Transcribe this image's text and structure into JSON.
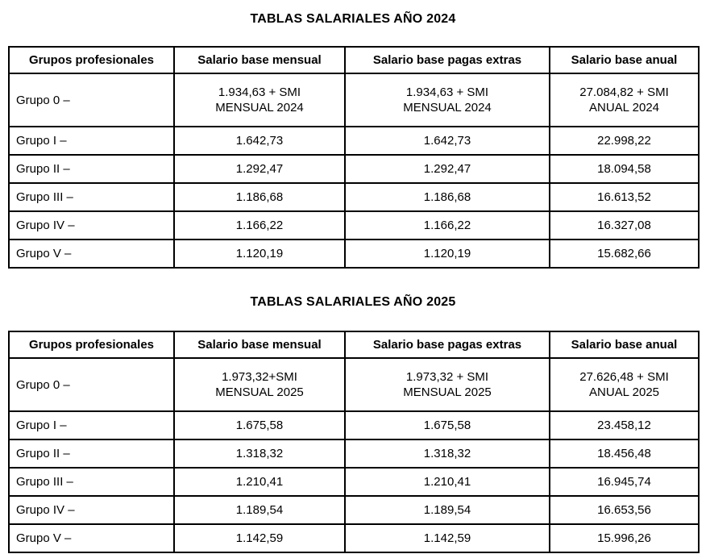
{
  "page": {
    "background": "#ffffff",
    "text_color": "#000000",
    "border_color": "#000000"
  },
  "tables": [
    {
      "title": "TABLAS SALARIALES AÑO 2024",
      "headers": [
        "Grupos profesionales",
        "Salario base mensual",
        "Salario base pagas extras",
        "Salario base anual"
      ],
      "rows": [
        [
          "Grupo 0 –",
          "1.934,63 + SMI\nMENSUAL 2024",
          "1.934,63 + SMI\nMENSUAL 2024",
          "27.084,82 + SMI\nANUAL 2024"
        ],
        [
          "Grupo I –",
          "1.642,73",
          "1.642,73",
          "22.998,22"
        ],
        [
          "Grupo II –",
          "1.292,47",
          "1.292,47",
          "18.094,58"
        ],
        [
          "Grupo III –",
          "1.186,68",
          "1.186,68",
          "16.613,52"
        ],
        [
          "Grupo IV –",
          "1.166,22",
          "1.166,22",
          "16.327,08"
        ],
        [
          "Grupo V –",
          "1.120,19",
          "1.120,19",
          "15.682,66"
        ]
      ]
    },
    {
      "title": "TABLAS SALARIALES AÑO 2025",
      "headers": [
        "Grupos profesionales",
        "Salario base mensual",
        "Salario base pagas extras",
        "Salario base anual"
      ],
      "rows": [
        [
          "Grupo 0 –",
          "1.973,32+SMI\nMENSUAL 2025",
          "1.973,32 + SMI\nMENSUAL 2025",
          "27.626,48 + SMI\nANUAL 2025"
        ],
        [
          "Grupo I –",
          "1.675,58",
          "1.675,58",
          "23.458,12"
        ],
        [
          "Grupo II –",
          "1.318,32",
          "1.318,32",
          "18.456,48"
        ],
        [
          "Grupo III –",
          "1.210,41",
          "1.210,41",
          "16.945,74"
        ],
        [
          "Grupo IV –",
          "1.189,54",
          "1.189,54",
          "16.653,56"
        ],
        [
          "Grupo V –",
          "1.142,59",
          "1.142,59",
          "15.996,26"
        ]
      ]
    }
  ]
}
